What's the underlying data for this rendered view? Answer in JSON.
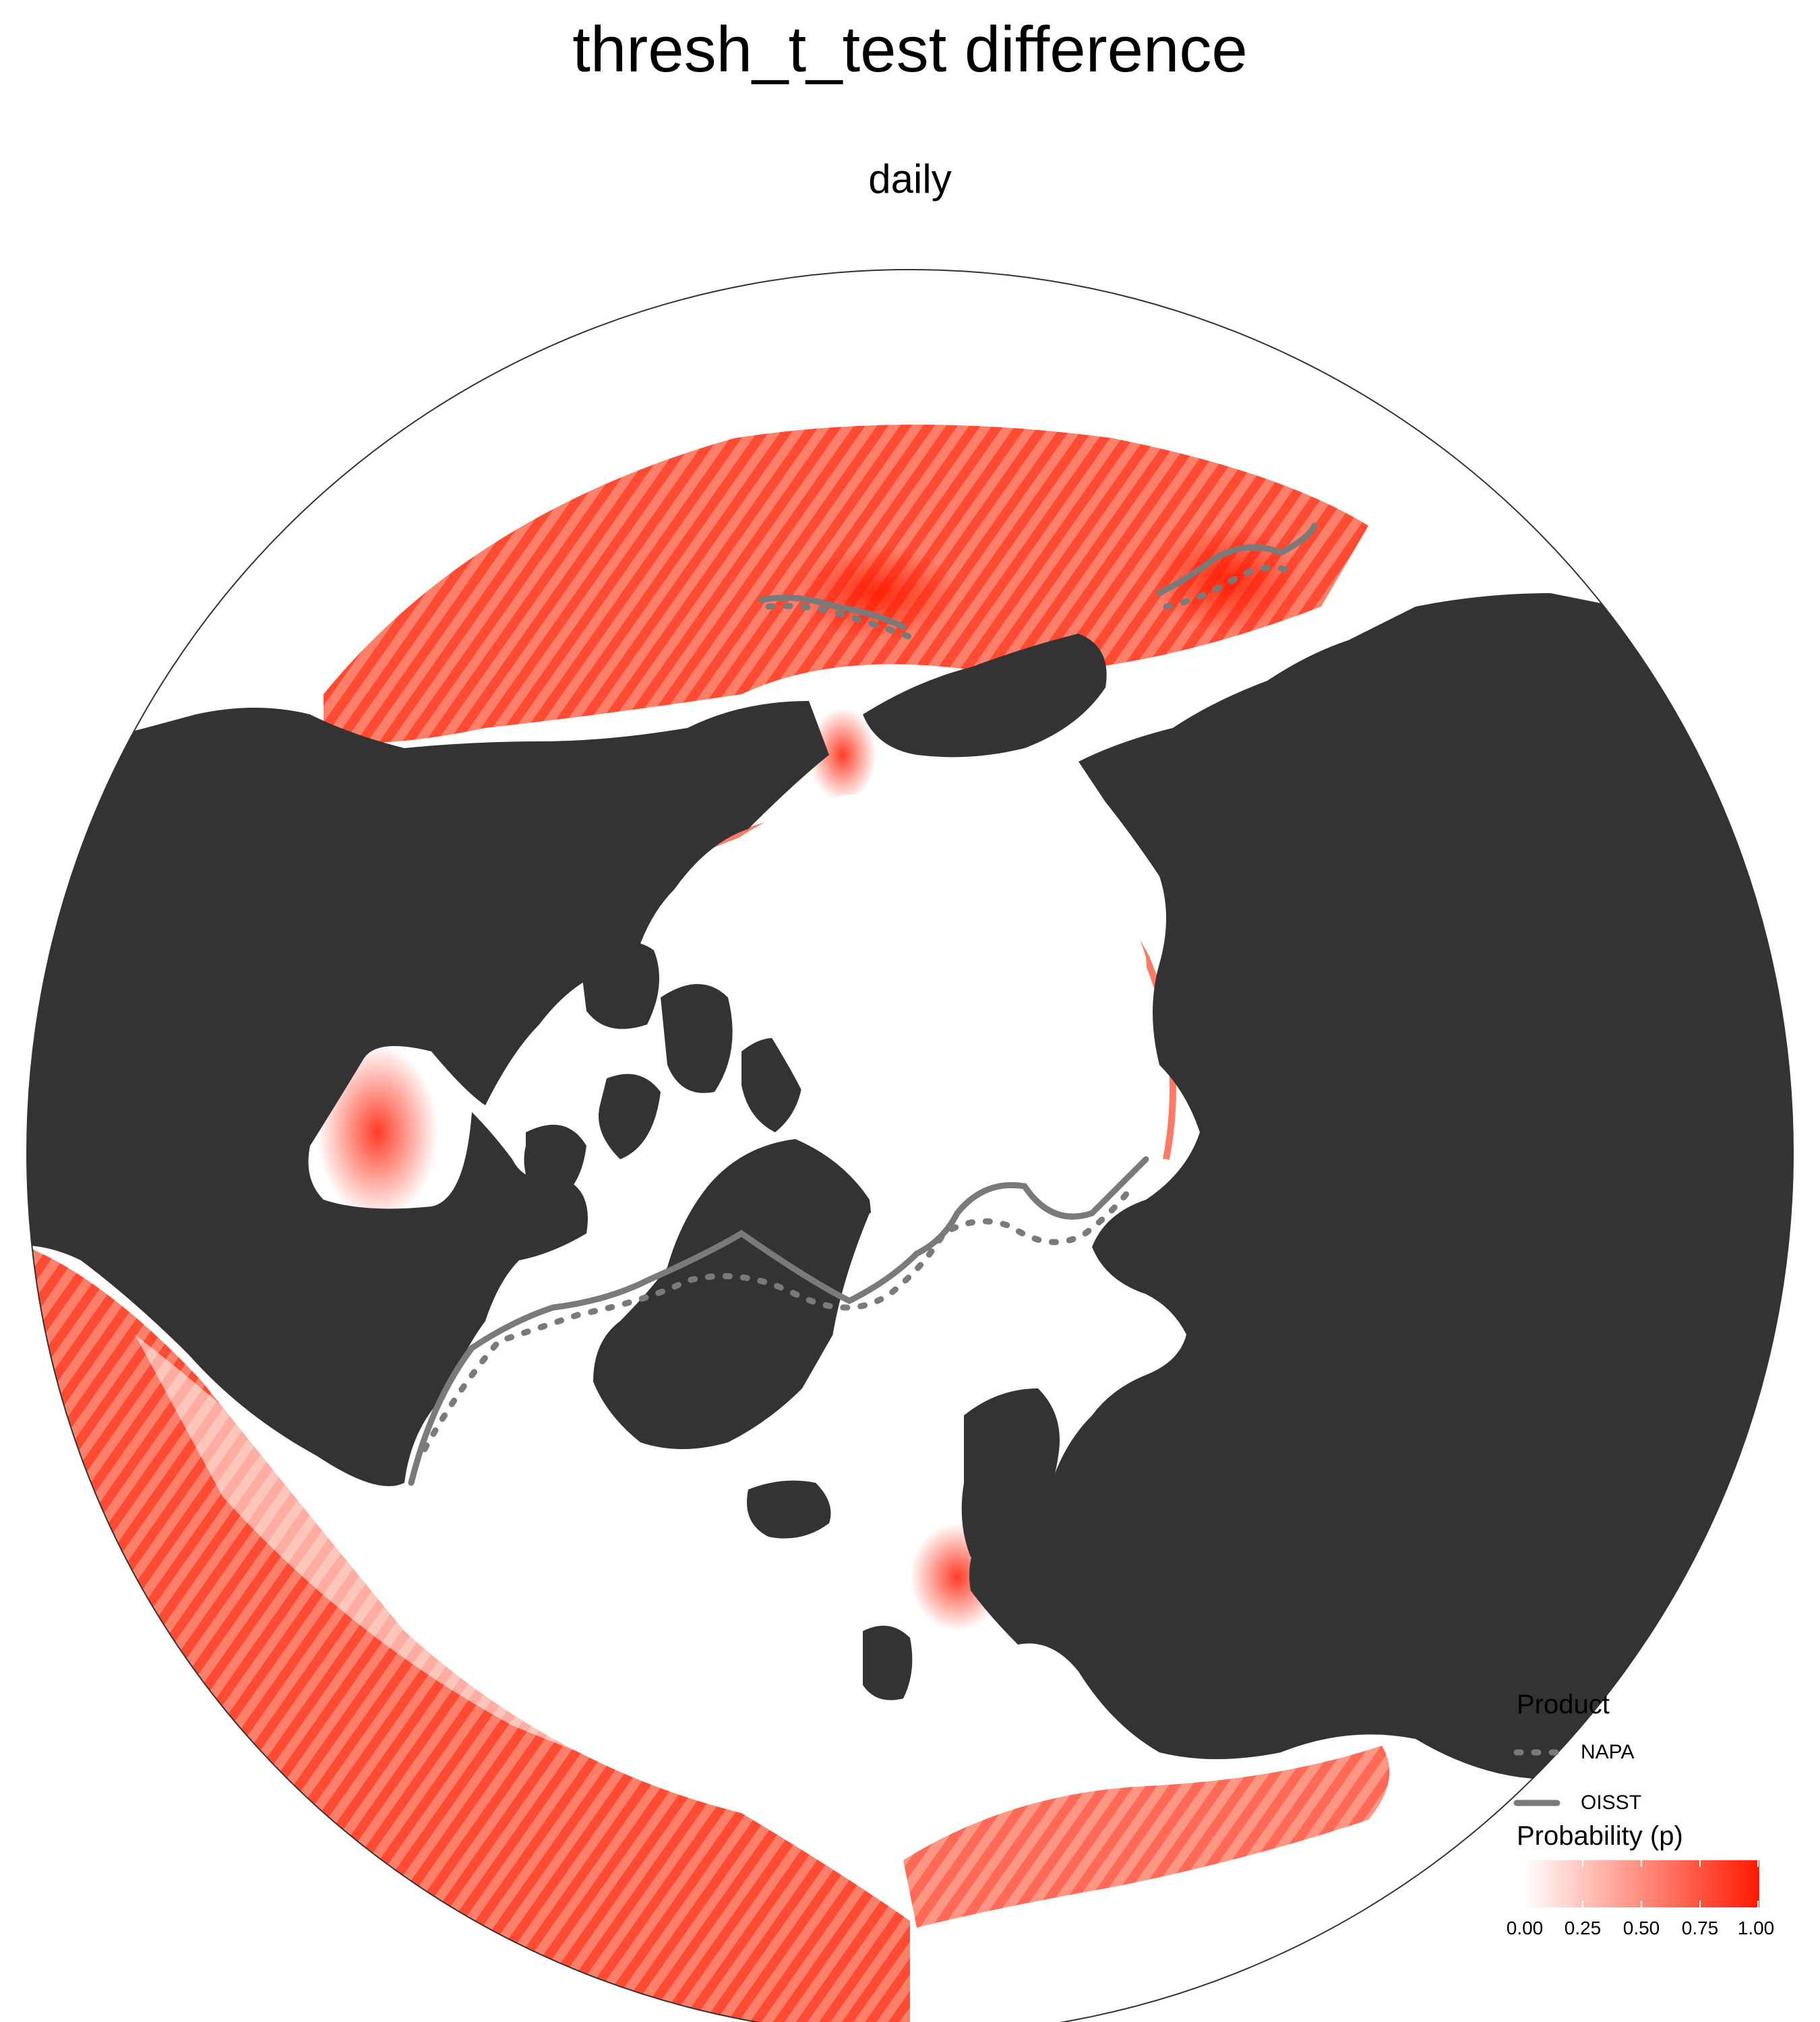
{
  "header": {
    "title": "thresh_t_test difference",
    "subtitle": "daily"
  },
  "colors": {
    "land": "#333333",
    "ocean_low": "#ffffff",
    "ocean_high": "#ff1a00",
    "line": "#7a7a7a"
  },
  "legend": {
    "product": {
      "title": "Product",
      "items": [
        {
          "label": "NAPA",
          "style": "dotted"
        },
        {
          "label": "OISST",
          "style": "solid"
        }
      ]
    },
    "probability": {
      "title": "Probability (p)",
      "ticks": [
        "0.00",
        "0.25",
        "0.50",
        "0.75",
        "1.00"
      ]
    }
  }
}
